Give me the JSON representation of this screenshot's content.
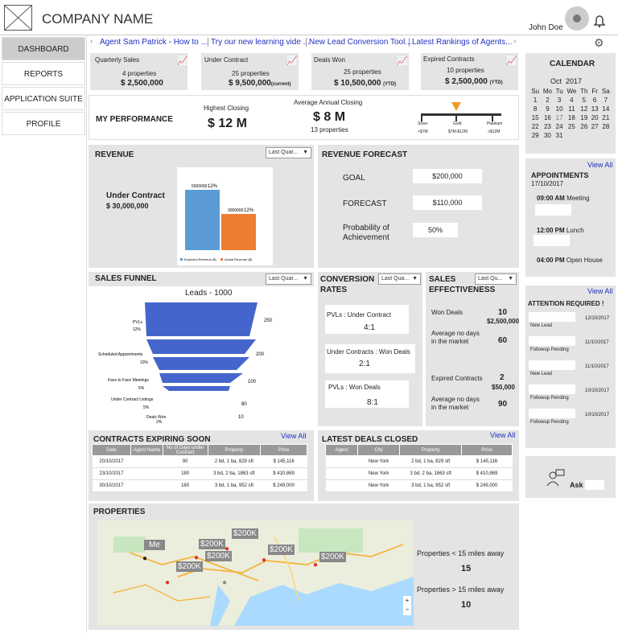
{
  "header": {
    "company": "COMPANY NAME",
    "user": "John Doe"
  },
  "nav": [
    "DASHBOARD",
    "REPORTS",
    "APPLICATION SUITE",
    "PROFILE"
  ],
  "ticker": [
    "Agent Sam Patrick - How to ...",
    "Try our new learning vide ...",
    "New Lead Conversion Tool...",
    "Latest Rankings of Agents..."
  ],
  "stats": [
    {
      "title": "Quarterly Sales",
      "sub": "4 properties",
      "value": "$ 2,500,000",
      "suffix": ""
    },
    {
      "title": "Under Contract",
      "sub": "25 properties",
      "value": "$ 9,500,000",
      "suffix": "(current)"
    },
    {
      "title": "Deals Won",
      "sub": "25 properties",
      "value": "$ 10,500,000",
      "suffix": "(YTD)"
    },
    {
      "title": "Expired Contracts",
      "sub": "10 properties",
      "value": "$ 2,500,000",
      "suffix": "(YTD)"
    }
  ],
  "performance": {
    "title": "MY PERFORMANCE",
    "hc_label": "Highest Closing",
    "hc_value": "$ 12 M",
    "aac_label": "Average Annual Closing",
    "aac_value": "$ 8 M",
    "aac_sub": "13 properties",
    "tiers": [
      {
        "name": "Silver",
        "range": "<$7M"
      },
      {
        "name": "Gold",
        "range": "$7M-$12M"
      },
      {
        "name": "Platinum",
        "range": ">$12M"
      }
    ]
  },
  "revenue": {
    "title": "REVENUE",
    "dropdown": "Last Quar...",
    "uc_label": "Under Contract",
    "uc_value": "$ 30,000,000",
    "bar1_label": "5000000",
    "bar1_pct": "12%",
    "bar2_label": "3000000",
    "bar2_pct": "12%",
    "legend1": "Expected Revenue ($)",
    "legend2": "Actual Revenue ($)"
  },
  "chart_data": {
    "type": "bar",
    "categories": [
      "Expected Revenue ($)",
      "Actual Revenue ($)"
    ],
    "values": [
      5000000,
      3000000
    ],
    "title": "",
    "xlabel": "",
    "ylabel": ""
  },
  "forecast": {
    "title": "REVENUE FORECAST",
    "goal_label": "GOAL",
    "goal_value": "$200,000",
    "fc_label": "FORECAST",
    "fc_value": "$110,000",
    "prob_label1": "Probability of",
    "prob_label2": "Achievement",
    "prob_value": "50%"
  },
  "funnel": {
    "title": "SALES FUNNEL",
    "dropdown": "Last Quar...",
    "leads": "Leads - 1000",
    "stages": [
      {
        "label": "PVLs",
        "pct": "12%",
        "num": "250"
      },
      {
        "label": "Scheduled Appointments",
        "pct": "10%",
        "num": "200"
      },
      {
        "label": "Face to Face Meetings",
        "pct": "5%",
        "num": "100"
      },
      {
        "label": "Under Contract Listings",
        "pct": "5%",
        "num": "80"
      },
      {
        "label": "Deals Won",
        "pct": "2%",
        "num": "10"
      }
    ]
  },
  "conversion": {
    "title1": "CONVERSION",
    "title2": "RATES",
    "dropdown": "Last Qua...",
    "items": [
      {
        "label": "PVLs : Under Contract",
        "value": "4:1"
      },
      {
        "label": "Under Contracts : Won Deals",
        "value": "2:1"
      },
      {
        "label": "PVLs : Won Deals",
        "value": "8:1"
      }
    ]
  },
  "effectiveness": {
    "title1": "SALES",
    "title2": "EFFECTIVENESS",
    "dropdown": "Last Qu...",
    "won_label": "Won Deals",
    "won_num": "10",
    "won_val": "$2,500,000",
    "avg1_label1": "Average no days",
    "avg1_label2": "in the market",
    "avg1": "60",
    "exp_label": "Expired Contracts",
    "exp_num": "2",
    "exp_val": "$50,000",
    "avg2_label1": "Average no days",
    "avg2_label2": "in the market",
    "avg2": "90"
  },
  "contracts": {
    "title": "CONTRACTS EXPIRING SOON",
    "view": "View All",
    "headers": [
      "Date",
      "Agent Name",
      "No of Days under Contract",
      "Property",
      "Price"
    ],
    "rows": [
      [
        "20/10/2017",
        "",
        "90",
        "2 bd, 1 ba, 829 sft",
        "$ 145,116"
      ],
      [
        "23/10/2017",
        "",
        "180",
        "3 bd, 2 ba, 1863 sft",
        "$ 410,869"
      ],
      [
        "30/10/2017",
        "",
        "180",
        "3 bd, 1 ba, 952 sft",
        "$ 249,000"
      ]
    ]
  },
  "latest": {
    "title": "LATEST DEALS CLOSED",
    "view": "View All",
    "headers": [
      "Agent",
      "City",
      "Property",
      "Price"
    ],
    "rows": [
      [
        "",
        "New York",
        "2 bd, 1 ba, 829 sft",
        "$ 145,116"
      ],
      [
        "",
        "New York",
        "3 bd, 2 ba, 1863 sft",
        "$ 410,869"
      ],
      [
        "",
        "New York",
        "3 bd, 1 ba, 952 sft",
        "$ 249,000"
      ]
    ]
  },
  "properties": {
    "title": "PROPERTIES",
    "near_label": "Properties < 15 miles away",
    "near": "15",
    "far_label": "Properties > 15 miles away",
    "far": "10",
    "map_labels": [
      "$200K",
      "$200K",
      "$200K",
      "$200K",
      "$200K",
      "$200K"
    ],
    "me": "Me"
  },
  "calendar": {
    "title": "CALENDAR",
    "month": "Oct  2017",
    "days": [
      "Su",
      "Mo",
      "Tu",
      "We",
      "Th",
      "Fr",
      "Sa"
    ],
    "weeks": [
      [
        "1",
        "2",
        "3",
        "4",
        "5",
        "6",
        "7"
      ],
      [
        "8",
        "9",
        "10",
        "11",
        "12",
        "13",
        "14"
      ],
      [
        "15",
        "16",
        "17",
        "18",
        "19",
        "20",
        "21"
      ],
      [
        "22",
        "23",
        "24",
        "25",
        "26",
        "27",
        "28"
      ],
      [
        "29",
        "30",
        "31",
        "",
        "",
        "",
        ""
      ]
    ]
  },
  "appointments": {
    "view": "View All",
    "title": "APPOINTMENTS",
    "date": "17/10/2017",
    "items": [
      {
        "time": "09:00 AM",
        "what": "Meeting"
      },
      {
        "time": "12:00 PM",
        "what": "Lunch"
      },
      {
        "time": "04:00 PM",
        "what": "Open House"
      }
    ]
  },
  "attention": {
    "view": "View All",
    "title": "ATTENTION REQUIRED !",
    "items": [
      {
        "label": "New Lead",
        "date": "12/10/2017"
      },
      {
        "label": "Followup Pending",
        "date": "11/10/2017"
      },
      {
        "label": "New Lead",
        "date": "11/10/2017"
      },
      {
        "label": "Followup Pending",
        "date": "10/10/2017"
      },
      {
        "label": "Followup Pending",
        "date": "10/10/2017"
      }
    ]
  },
  "ask": {
    "label": "Ask"
  }
}
